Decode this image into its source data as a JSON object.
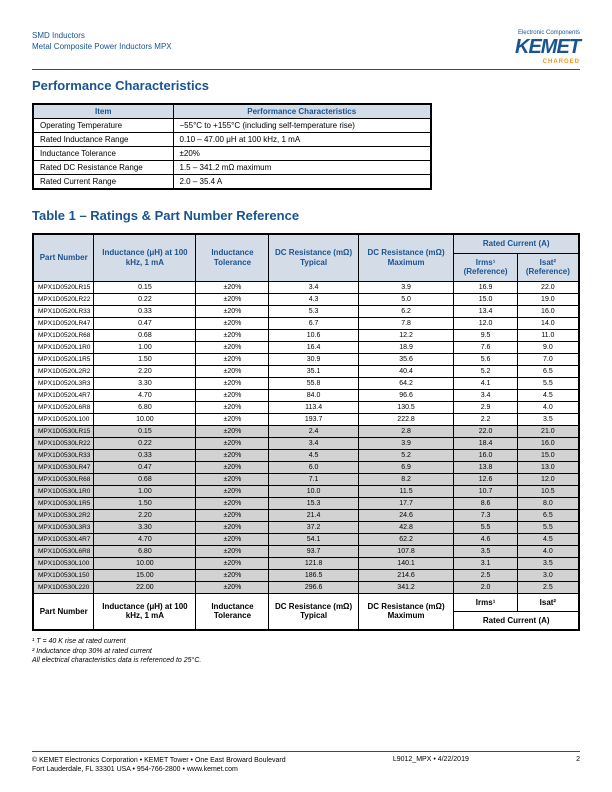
{
  "header": {
    "line1": "SMD Inductors",
    "line2": "Metal Composite Power Inductors MPX",
    "logoTop": "Electronic Components",
    "logoMain": "KEMET",
    "logoSub": "CHARGED"
  },
  "h1": "Performance Characteristics",
  "pcHead": {
    "c1": "Item",
    "c2": "Performance Characteristics"
  },
  "pc": [
    {
      "k": "Operating Temperature",
      "v": "−55°C to +155°C (including self-temperature rise)"
    },
    {
      "k": "Rated Inductance Range",
      "v": "0.10 – 47.00 μH at 100 kHz, 1 mA"
    },
    {
      "k": "Inductance Tolerance",
      "v": "±20%"
    },
    {
      "k": "Rated DC Resistance Range",
      "v": "1.5 – 341.2 mΩ maximum"
    },
    {
      "k": "Rated Current Range",
      "v": "2.0 – 35.4 A"
    }
  ],
  "h2": "Table 1 – Ratings & Part Number Reference",
  "cols": {
    "pn": "Part Number",
    "ind": "Inductance (μH) at 100 kHz, 1 mA",
    "tol": "Inductance Tolerance",
    "dct": "DC Resistance (mΩ) Typical",
    "dcm": "DC Resistance (mΩ) Maximum",
    "rc": "Rated Current (A)",
    "irms": "Irms¹ (Reference)",
    "isat": "Isat² (Reference)"
  },
  "rows": [
    {
      "g": 0,
      "pn": "MPX1D0520LR15",
      "ind": "0.15",
      "tol": "±20%",
      "dct": "3.4",
      "dcm": "3.9",
      "irms": "16.9",
      "isat": "22.0"
    },
    {
      "g": 0,
      "pn": "MPX1D0520LR22",
      "ind": "0.22",
      "tol": "±20%",
      "dct": "4.3",
      "dcm": "5.0",
      "irms": "15.0",
      "isat": "19.0"
    },
    {
      "g": 0,
      "pn": "MPX1D0520LR33",
      "ind": "0.33",
      "tol": "±20%",
      "dct": "5.3",
      "dcm": "6.2",
      "irms": "13.4",
      "isat": "16.0"
    },
    {
      "g": 0,
      "pn": "MPX1D0520LR47",
      "ind": "0.47",
      "tol": "±20%",
      "dct": "6.7",
      "dcm": "7.8",
      "irms": "12.0",
      "isat": "14.0"
    },
    {
      "g": 0,
      "pn": "MPX1D0520LR68",
      "ind": "0.68",
      "tol": "±20%",
      "dct": "10.6",
      "dcm": "12.2",
      "irms": "9.5",
      "isat": "11.0"
    },
    {
      "g": 0,
      "pn": "MPX1D0520L1R0",
      "ind": "1.00",
      "tol": "±20%",
      "dct": "16.4",
      "dcm": "18.9",
      "irms": "7.6",
      "isat": "9.0"
    },
    {
      "g": 0,
      "pn": "MPX1D0520L1R5",
      "ind": "1.50",
      "tol": "±20%",
      "dct": "30.9",
      "dcm": "35.6",
      "irms": "5.6",
      "isat": "7.0"
    },
    {
      "g": 0,
      "pn": "MPX1D0520L2R2",
      "ind": "2.20",
      "tol": "±20%",
      "dct": "35.1",
      "dcm": "40.4",
      "irms": "5.2",
      "isat": "6.5"
    },
    {
      "g": 0,
      "pn": "MPX1D0520L3R3",
      "ind": "3.30",
      "tol": "±20%",
      "dct": "55.8",
      "dcm": "64.2",
      "irms": "4.1",
      "isat": "5.5"
    },
    {
      "g": 0,
      "pn": "MPX1D0520L4R7",
      "ind": "4.70",
      "tol": "±20%",
      "dct": "84.0",
      "dcm": "96.6",
      "irms": "3.4",
      "isat": "4.5"
    },
    {
      "g": 0,
      "pn": "MPX1D0520L6R8",
      "ind": "6.80",
      "tol": "±20%",
      "dct": "113.4",
      "dcm": "130.5",
      "irms": "2.9",
      "isat": "4.0"
    },
    {
      "g": 0,
      "pn": "MPX1D0520L100",
      "ind": "10.00",
      "tol": "±20%",
      "dct": "193.7",
      "dcm": "222.8",
      "irms": "2.2",
      "isat": "3.5"
    },
    {
      "g": 1,
      "pn": "MPX1D0530LR15",
      "ind": "0.15",
      "tol": "±20%",
      "dct": "2.4",
      "dcm": "2.8",
      "irms": "22.0",
      "isat": "21.0"
    },
    {
      "g": 1,
      "pn": "MPX1D0530LR22",
      "ind": "0.22",
      "tol": "±20%",
      "dct": "3.4",
      "dcm": "3.9",
      "irms": "18.4",
      "isat": "16.0"
    },
    {
      "g": 1,
      "pn": "MPX1D0530LR33",
      "ind": "0.33",
      "tol": "±20%",
      "dct": "4.5",
      "dcm": "5.2",
      "irms": "16.0",
      "isat": "15.0"
    },
    {
      "g": 1,
      "pn": "MPX1D0530LR47",
      "ind": "0.47",
      "tol": "±20%",
      "dct": "6.0",
      "dcm": "6.9",
      "irms": "13.8",
      "isat": "13.0"
    },
    {
      "g": 1,
      "pn": "MPX1D0530LR68",
      "ind": "0.68",
      "tol": "±20%",
      "dct": "7.1",
      "dcm": "8.2",
      "irms": "12.6",
      "isat": "12.0"
    },
    {
      "g": 1,
      "pn": "MPX1D0530L1R0",
      "ind": "1.00",
      "tol": "±20%",
      "dct": "10.0",
      "dcm": "11.5",
      "irms": "10.7",
      "isat": "10.5"
    },
    {
      "g": 1,
      "pn": "MPX1D0530L1R5",
      "ind": "1.50",
      "tol": "±20%",
      "dct": "15.3",
      "dcm": "17.7",
      "irms": "8.6",
      "isat": "8.0"
    },
    {
      "g": 1,
      "pn": "MPX1D0530L2R2",
      "ind": "2.20",
      "tol": "±20%",
      "dct": "21.4",
      "dcm": "24.6",
      "irms": "7.3",
      "isat": "6.5"
    },
    {
      "g": 1,
      "pn": "MPX1D0530L3R3",
      "ind": "3.30",
      "tol": "±20%",
      "dct": "37.2",
      "dcm": "42.8",
      "irms": "5.5",
      "isat": "5.5"
    },
    {
      "g": 1,
      "pn": "MPX1D0530L4R7",
      "ind": "4.70",
      "tol": "±20%",
      "dct": "54.1",
      "dcm": "62.2",
      "irms": "4.6",
      "isat": "4.5"
    },
    {
      "g": 1,
      "pn": "MPX1D0530L6R8",
      "ind": "6.80",
      "tol": "±20%",
      "dct": "93.7",
      "dcm": "107.8",
      "irms": "3.5",
      "isat": "4.0"
    },
    {
      "g": 1,
      "pn": "MPX1D0530L100",
      "ind": "10.00",
      "tol": "±20%",
      "dct": "121.8",
      "dcm": "140.1",
      "irms": "3.1",
      "isat": "3.5"
    },
    {
      "g": 1,
      "pn": "MPX1D0530L150",
      "ind": "15.00",
      "tol": "±20%",
      "dct": "186.5",
      "dcm": "214.6",
      "irms": "2.5",
      "isat": "3.0"
    },
    {
      "g": 1,
      "pn": "MPX1D0530L220",
      "ind": "22.00",
      "tol": "±20%",
      "dct": "296.6",
      "dcm": "341.2",
      "irms": "2.0",
      "isat": "2.5"
    }
  ],
  "foot": {
    "pn": "Part Number",
    "ind": "Inductance (μH) at 100 kHz, 1 mA",
    "tol": "Inductance Tolerance",
    "dct": "DC Resistance (mΩ) Typical",
    "dcm": "DC Resistance (mΩ) Maximum",
    "irms": "Irms¹",
    "isat": "Isat²",
    "rc": "Rated Current (A)"
  },
  "notes": {
    "n1": "¹ T = 40 K rise at rated current",
    "n2": "² Inductance drop 30% at rated current",
    "n3": "All electrical characteristics data is referenced to 25°C."
  },
  "footer": {
    "l1": "© KEMET Electronics Corporation • KEMET Tower • One East Broward Boulevard",
    "l2": "Fort Lauderdale, FL 33301 USA • 954-766-2800 • www.kemet.com",
    "r": "L9012_MPX • 4/22/2019",
    "pg": "2"
  }
}
